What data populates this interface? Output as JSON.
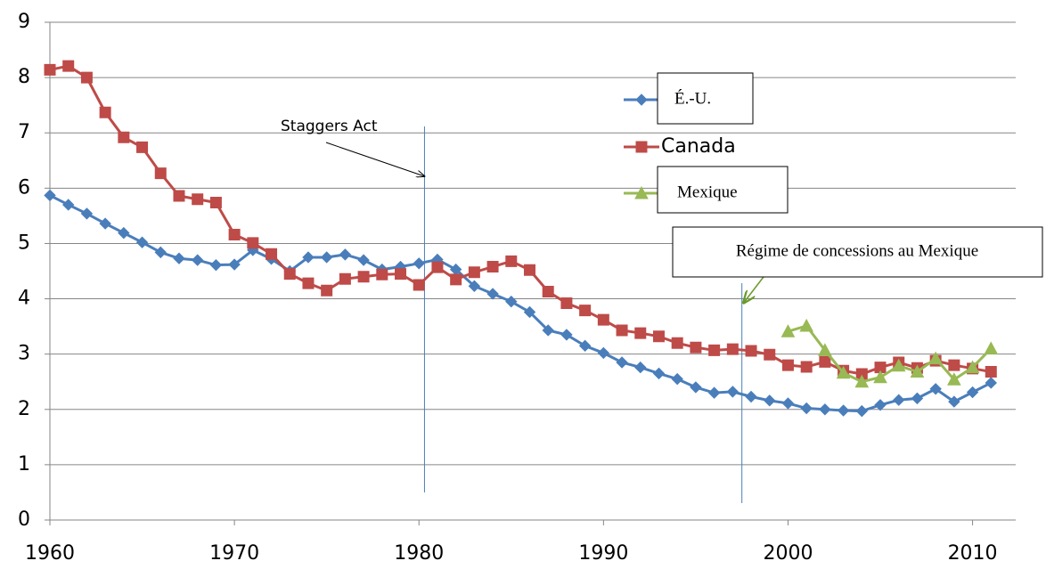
{
  "chart_data": {
    "type": "line",
    "xlim": [
      1960,
      2012
    ],
    "xticks": [
      1960,
      1970,
      1980,
      1990,
      2000,
      2010
    ],
    "ylim": [
      0,
      9
    ],
    "yticks": [
      0,
      1,
      2,
      3,
      4,
      5,
      6,
      7,
      8,
      9
    ],
    "grid": true,
    "series": [
      {
        "name": "É.-U.",
        "color": "#4a7ebb",
        "marker": "diamond",
        "x": [
          1960,
          1961,
          1962,
          1963,
          1964,
          1965,
          1966,
          1967,
          1968,
          1969,
          1970,
          1971,
          1972,
          1973,
          1974,
          1975,
          1976,
          1977,
          1978,
          1979,
          1980,
          1981,
          1982,
          1983,
          1984,
          1985,
          1986,
          1987,
          1988,
          1989,
          1990,
          1991,
          1992,
          1993,
          1994,
          1995,
          1996,
          1997,
          1998,
          1999,
          2000,
          2001,
          2002,
          2003,
          2004,
          2005,
          2006,
          2007,
          2008,
          2009,
          2010,
          2011
        ],
        "values": [
          5.87,
          5.7,
          5.54,
          5.36,
          5.19,
          5.02,
          4.84,
          4.73,
          4.7,
          4.61,
          4.62,
          4.88,
          4.72,
          4.5,
          4.75,
          4.75,
          4.8,
          4.7,
          4.53,
          4.58,
          4.64,
          4.71,
          4.53,
          4.23,
          4.09,
          3.95,
          3.76,
          3.43,
          3.35,
          3.15,
          3.02,
          2.85,
          2.76,
          2.65,
          2.55,
          2.4,
          2.3,
          2.32,
          2.23,
          2.16,
          2.11,
          2.02,
          2.0,
          1.98,
          1.97,
          2.08,
          2.17,
          2.2,
          2.37,
          2.14,
          2.31,
          2.48
        ]
      },
      {
        "name": "Canada",
        "color": "#be4b48",
        "marker": "square",
        "x": [
          1960,
          1961,
          1962,
          1963,
          1964,
          1965,
          1966,
          1967,
          1968,
          1969,
          1970,
          1971,
          1972,
          1973,
          1974,
          1975,
          1976,
          1977,
          1978,
          1979,
          1980,
          1981,
          1982,
          1983,
          1984,
          1985,
          1986,
          1987,
          1988,
          1989,
          1990,
          1991,
          1992,
          1993,
          1994,
          1995,
          1996,
          1997,
          1998,
          1999,
          2000,
          2001,
          2002,
          2003,
          2004,
          2005,
          2006,
          2007,
          2008,
          2009,
          2010,
          2011
        ],
        "values": [
          8.14,
          8.21,
          8.0,
          7.37,
          6.92,
          6.74,
          6.27,
          5.86,
          5.8,
          5.74,
          5.16,
          5.01,
          4.81,
          4.45,
          4.28,
          4.15,
          4.36,
          4.4,
          4.44,
          4.45,
          4.25,
          4.57,
          4.35,
          4.48,
          4.58,
          4.68,
          4.52,
          4.13,
          3.92,
          3.79,
          3.62,
          3.43,
          3.38,
          3.32,
          3.2,
          3.12,
          3.07,
          3.09,
          3.06,
          2.99,
          2.8,
          2.77,
          2.86,
          2.7,
          2.64,
          2.76,
          2.85,
          2.75,
          2.88,
          2.8,
          2.74,
          2.68
        ]
      },
      {
        "name": "Mexique",
        "color": "#98b954",
        "marker": "triangle",
        "x": [
          2000,
          2001,
          2002,
          2003,
          2004,
          2005,
          2006,
          2007,
          2008,
          2009,
          2010,
          2011
        ],
        "values": [
          3.41,
          3.51,
          3.07,
          2.66,
          2.5,
          2.58,
          2.79,
          2.68,
          2.92,
          2.54,
          2.76,
          3.1
        ]
      }
    ],
    "annotations": [
      {
        "text": "Staggers Act",
        "x": 1980.3
      },
      {
        "text": "Régime de concessions au Mexique",
        "x": 1997.5
      }
    ]
  }
}
